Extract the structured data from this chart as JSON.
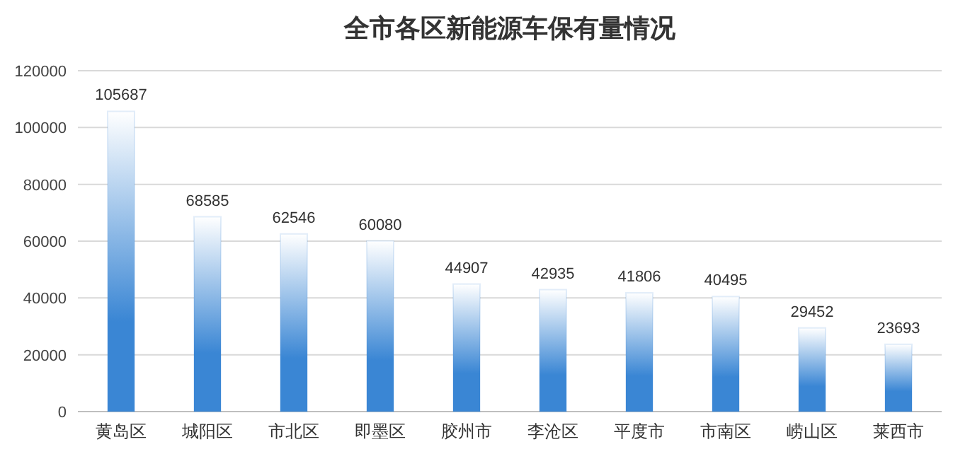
{
  "chart_data": {
    "type": "bar",
    "title": "全市各区新能源车保有量情况",
    "categories": [
      "黄岛区",
      "城阳区",
      "市北区",
      "即墨区",
      "胶州市",
      "李沧区",
      "平度市",
      "市南区",
      "崂山区",
      "莱西市"
    ],
    "values": [
      105687,
      68585,
      62546,
      60080,
      44907,
      42935,
      41806,
      40495,
      29452,
      23693
    ],
    "color": "#3a86d4",
    "ylim": [
      0,
      120000
    ],
    "yticks": [
      0,
      20000,
      40000,
      60000,
      80000,
      100000,
      120000
    ],
    "grid": "y",
    "data_labels": true
  }
}
